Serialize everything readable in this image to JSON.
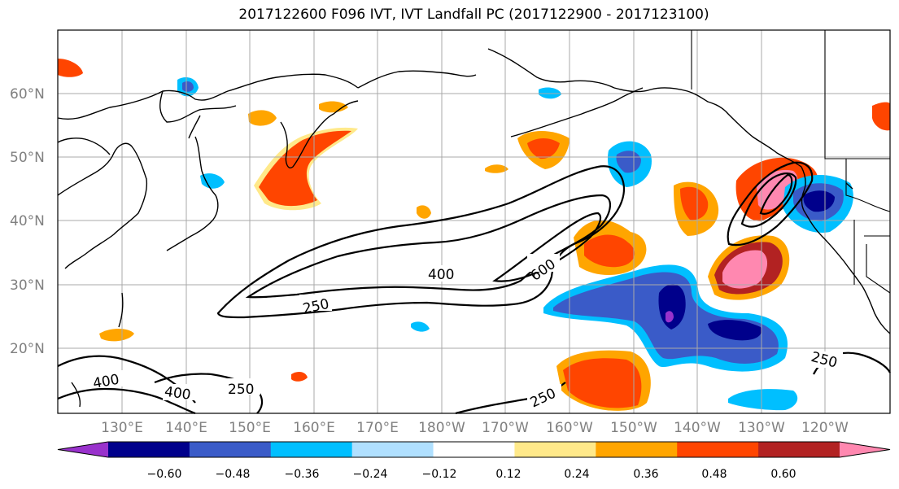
{
  "title": "2017122600 F096 IVT, IVT Landfall PC (2017122900 - 2017123100)",
  "lat_labels": [
    "60°N",
    "50°N",
    "40°N",
    "30°N",
    "20°N"
  ],
  "lon_labels": [
    "130°E",
    "140°E",
    "150°E",
    "160°E",
    "170°E",
    "180°W",
    "170°W",
    "160°W",
    "150°W",
    "140°W",
    "130°W",
    "120°W"
  ],
  "contour_labels": {
    "c250_main": "250",
    "c400_main": "400",
    "c600_main": "600",
    "c400_sw": "400",
    "c400_sw2": "400",
    "c250_sw": "250",
    "c250_s": "250",
    "c250_se": "250"
  },
  "colorbar": {
    "ticks": [
      "−0.60",
      "−0.48",
      "−0.36",
      "−0.24",
      "−0.12",
      "0.12",
      "0.24",
      "0.36",
      "0.48",
      "0.60"
    ],
    "colors": [
      "#9932CC",
      "#00008B",
      "#3A5BC8",
      "#00BFFF",
      "#B0E0FF",
      "#FFFFFF",
      "#FFE98A",
      "#FFA500",
      "#FF4500",
      "#B22222",
      "#FF88B0"
    ]
  },
  "colors": {
    "neg_deep": "#9932CC",
    "neg_dark": "#00008B",
    "neg_mid": "#3A5BC8",
    "neg_light": "#00BFFF",
    "neg_pale": "#B0E0FF",
    "pos_pale": "#FFE98A",
    "pos_light": "#FFA500",
    "pos_mid": "#FF4500",
    "pos_dark": "#B22222",
    "pos_deep": "#FF88B0"
  }
}
